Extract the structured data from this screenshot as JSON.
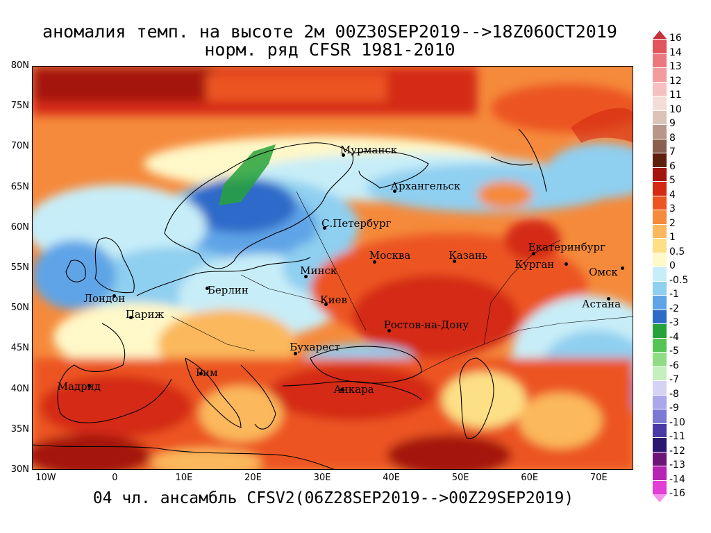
{
  "title": {
    "line1": "аномалия темп. на высоте 2м 00Z30SEP2019-->18Z06OCT2019",
    "line2": "норм. ряд CFSR 1981-2010"
  },
  "footer": "04 чл. ансамбль CFSV2(06Z28SEP2019-->00Z29SEP2019)",
  "axes": {
    "lat_ticks": [
      "80N",
      "75N",
      "70N",
      "65N",
      "60N",
      "55N",
      "50N",
      "45N",
      "40N",
      "35N",
      "30N"
    ],
    "lon_ticks": [
      "10W",
      "0",
      "10E",
      "20E",
      "30E",
      "40E",
      "50E",
      "60E",
      "70E"
    ]
  },
  "cities": [
    {
      "name": "Мурманск",
      "lon": 33.1,
      "lat": 68.97
    },
    {
      "name": "Архангельск",
      "lon": 40.5,
      "lat": 64.5
    },
    {
      "name": "С.Петербург",
      "lon": 30.3,
      "lat": 59.9
    },
    {
      "name": "Москва",
      "lon": 37.6,
      "lat": 55.75
    },
    {
      "name": "Казань",
      "lon": 49.1,
      "lat": 55.8
    },
    {
      "name": "Екатеринбург",
      "lon": 60.6,
      "lat": 56.8
    },
    {
      "name": "Курган",
      "lon": 65.3,
      "lat": 55.45
    },
    {
      "name": "Омск",
      "lon": 73.4,
      "lat": 54.95
    },
    {
      "name": "Астана",
      "lon": 71.4,
      "lat": 51.15
    },
    {
      "name": "Минск",
      "lon": 27.6,
      "lat": 53.9
    },
    {
      "name": "Берлин",
      "lon": 13.4,
      "lat": 52.5
    },
    {
      "name": "Лондон",
      "lon": -0.1,
      "lat": 51.5
    },
    {
      "name": "Париж",
      "lon": 2.35,
      "lat": 48.85
    },
    {
      "name": "Киев",
      "lon": 30.5,
      "lat": 50.45
    },
    {
      "name": "Ростов-на-Дону",
      "lon": 39.7,
      "lat": 47.2
    },
    {
      "name": "Бухарест",
      "lon": 26.1,
      "lat": 44.4
    },
    {
      "name": "Рим",
      "lon": 12.5,
      "lat": 41.9
    },
    {
      "name": "Мадрид",
      "lon": -3.7,
      "lat": 40.4
    },
    {
      "name": "Анкара",
      "lon": 32.85,
      "lat": 39.9
    }
  ],
  "legend": {
    "levels": [
      "16",
      "14",
      "13",
      "12",
      "11",
      "10",
      "9",
      "8",
      "7",
      "6",
      "5",
      "4",
      "3",
      "2",
      "1",
      "0.5",
      "0",
      "-0.5",
      "-1",
      "-2",
      "-3",
      "-4",
      "-5",
      "-6",
      "-7",
      "-8",
      "-9",
      "-10",
      "-11",
      "-12",
      "-13",
      "-14",
      "-16"
    ],
    "colors": [
      "#c8303a",
      "#e1555c",
      "#eb787e",
      "#f29c9f",
      "#f6bfc0",
      "#f3ddd6",
      "#dcc3b7",
      "#b8968a",
      "#8a5f4f",
      "#5e1f0f",
      "#a4160d",
      "#d42a12",
      "#ec5520",
      "#f58a3c",
      "#fbb85c",
      "#fde085",
      "#fff8c8",
      "#c7edf8",
      "#8fcff0",
      "#5ea4e6",
      "#2e6bc9",
      "#27a23a",
      "#55c457",
      "#8fdc85",
      "#c6efc0",
      "#d5d3f4",
      "#aaa8ea",
      "#7b79d4",
      "#4a3aa6",
      "#2a1870",
      "#6e1677",
      "#b524b2",
      "#e33ed6",
      "#f494ec"
    ]
  },
  "map": {
    "lon_range": [
      -12,
      75
    ],
    "lat_range": [
      30,
      80
    ],
    "anomaly_field_note": "2m temperature anomaly, deg C"
  }
}
